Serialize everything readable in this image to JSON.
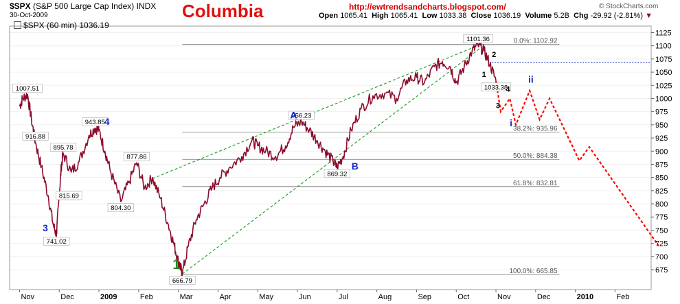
{
  "header": {
    "ticker": "$SPX",
    "index_name": "(S&P 500 Large Cap Index)",
    "exchange": "INDX",
    "date": "30-Oct-2009",
    "title": "Columbia",
    "url": "http://ewtrendsandcharts.blogspot.com/",
    "ohlc": {
      "open_label": "Open",
      "open": "1065.41",
      "high_label": "High",
      "high": "1065.41",
      "low_label": "Low",
      "low": "1033.38",
      "close_label": "Close",
      "close": "1036.19",
      "volume_label": "Volume",
      "volume": "5.2B",
      "chg_label": "Chg",
      "chg": "-29.92 (-2.81%)"
    },
    "legend": "$SPX (60 min) 1036.19",
    "brand": "© StockCharts.com"
  },
  "colors": {
    "title": "#e01010",
    "url": "#d00000",
    "price": "#8b0c2c",
    "wedge": "#2aa02a",
    "forecast": "#ff0000",
    "blue_label": "#1a2acc",
    "green_label": "#1c8c1c",
    "fib_line": "#707070",
    "dotted_level": "#1a2acc"
  },
  "chart_data": {
    "type": "line",
    "x_unit": "months (Nov 2008 = 0)",
    "ylim": [
      650,
      1130
    ],
    "y_ticks": [
      675,
      700,
      725,
      750,
      775,
      800,
      825,
      850,
      875,
      900,
      925,
      950,
      975,
      1000,
      1025,
      1050,
      1075,
      1100,
      1125
    ],
    "x_tick_labels": [
      {
        "label": "Nov",
        "x": 0
      },
      {
        "label": "Dec",
        "x": 1
      },
      {
        "label": "2009",
        "x": 2,
        "bold": true
      },
      {
        "label": "Feb",
        "x": 3
      },
      {
        "label": "Mar",
        "x": 4
      },
      {
        "label": "Apr",
        "x": 5
      },
      {
        "label": "May",
        "x": 6
      },
      {
        "label": "Jun",
        "x": 7
      },
      {
        "label": "Jul",
        "x": 8
      },
      {
        "label": "Aug",
        "x": 9
      },
      {
        "label": "Sep",
        "x": 10
      },
      {
        "label": "Oct",
        "x": 11
      },
      {
        "label": "Nov",
        "x": 12
      },
      {
        "label": "Dec",
        "x": 13
      },
      {
        "label": "2010",
        "x": 14,
        "bold": true
      },
      {
        "label": "Feb",
        "x": 15
      }
    ],
    "series": [
      {
        "kind": "price",
        "points": [
          [
            0,
            985
          ],
          [
            0.08,
            1000
          ],
          [
            0.2,
            1007.51
          ],
          [
            0.3,
            960
          ],
          [
            0.4,
            916.88
          ],
          [
            0.55,
            870
          ],
          [
            0.72,
            815.69
          ],
          [
            0.85,
            760
          ],
          [
            0.93,
            741.02
          ],
          [
            1.0,
            815
          ],
          [
            1.05,
            870
          ],
          [
            1.1,
            895.78
          ],
          [
            1.3,
            860
          ],
          [
            1.5,
            880
          ],
          [
            1.75,
            930
          ],
          [
            1.9,
            943.85
          ],
          [
            2.0,
            940
          ],
          [
            2.15,
            900
          ],
          [
            2.3,
            860
          ],
          [
            2.55,
            804.3
          ],
          [
            2.75,
            840
          ],
          [
            2.95,
            877.86
          ],
          [
            3.15,
            830
          ],
          [
            3.35,
            850
          ],
          [
            3.55,
            810
          ],
          [
            3.75,
            760
          ],
          [
            3.9,
            720
          ],
          [
            4.0,
            690
          ],
          [
            4.05,
            680
          ],
          [
            4.1,
            666.79
          ],
          [
            4.25,
            720
          ],
          [
            4.45,
            770
          ],
          [
            4.65,
            800
          ],
          [
            4.85,
            830
          ],
          [
            5.05,
            850
          ],
          [
            5.3,
            870
          ],
          [
            5.6,
            890
          ],
          [
            5.85,
            920
          ],
          [
            6.0,
            910
          ],
          [
            6.2,
            900
          ],
          [
            6.45,
            890
          ],
          [
            6.7,
            910
          ],
          [
            6.9,
            945
          ],
          [
            7.1,
            956.23
          ],
          [
            7.3,
            940
          ],
          [
            7.5,
            920
          ],
          [
            7.7,
            900
          ],
          [
            7.9,
            880
          ],
          [
            8.0,
            869.32
          ],
          [
            8.15,
            890
          ],
          [
            8.35,
            940
          ],
          [
            8.6,
            980
          ],
          [
            8.9,
            1005
          ],
          [
            9.2,
            1010
          ],
          [
            9.5,
            1000
          ],
          [
            9.75,
            1035
          ],
          [
            10.0,
            1040
          ],
          [
            10.2,
            1030
          ],
          [
            10.45,
            1060
          ],
          [
            10.65,
            1070
          ],
          [
            10.85,
            1060
          ],
          [
            11.0,
            1030
          ],
          [
            11.2,
            1060
          ],
          [
            11.4,
            1090
          ],
          [
            11.55,
            1101.36
          ],
          [
            11.7,
            1090
          ],
          [
            11.85,
            1065
          ],
          [
            12.0,
            1033.38
          ]
        ]
      },
      {
        "kind": "forecast",
        "points": [
          [
            12.0,
            1033.38
          ],
          [
            12.12,
            975
          ],
          [
            12.35,
            1000
          ],
          [
            12.5,
            950
          ],
          [
            12.85,
            1015
          ],
          [
            13.1,
            960
          ],
          [
            13.35,
            1000
          ],
          [
            14.1,
            882
          ],
          [
            14.35,
            908
          ],
          [
            16.1,
            720
          ]
        ]
      }
    ],
    "trendlines": [
      {
        "kind": "wedge",
        "from": [
          3.35,
          848
        ],
        "to": [
          11.6,
          1102
        ]
      },
      {
        "kind": "wedge",
        "from": [
          4.1,
          666.79
        ],
        "to": [
          11.65,
          1098
        ]
      }
    ],
    "fib_levels": [
      {
        "label": "0.0%: 1102.92",
        "value": 1102.92
      },
      {
        "label": "38.2%: 935.96",
        "value": 935.96
      },
      {
        "label": "50.0%: 884.38",
        "value": 884.38
      },
      {
        "label": "61.8%: 832.81",
        "value": 832.81
      },
      {
        "label": "100.0%: 665.85",
        "value": 665.85
      }
    ],
    "fib_x_range": [
      4.1,
      13.6
    ],
    "dotted_level": {
      "value": 1068,
      "x_from": 11.9
    },
    "price_labels": [
      {
        "text": "1007.51",
        "x": 0.2,
        "y": 1007.51,
        "pos": "above"
      },
      {
        "text": "916.88",
        "x": 0.4,
        "y": 916.88,
        "pos": "above"
      },
      {
        "text": "895.78",
        "x": 1.1,
        "y": 895.78,
        "pos": "above"
      },
      {
        "text": "815.69",
        "x": 0.85,
        "y": 815.69,
        "pos": "right"
      },
      {
        "text": "741.02",
        "x": 0.93,
        "y": 741.02,
        "pos": "below"
      },
      {
        "text": "943.85",
        "x": 1.9,
        "y": 943.85,
        "pos": "above"
      },
      {
        "text": "877.86",
        "x": 2.95,
        "y": 877.86,
        "pos": "above"
      },
      {
        "text": "804.30",
        "x": 2.55,
        "y": 804.3,
        "pos": "below"
      },
      {
        "text": "956.23",
        "x": 7.1,
        "y": 956.23,
        "pos": "above"
      },
      {
        "text": "869.32",
        "x": 8.0,
        "y": 869.32,
        "pos": "below"
      },
      {
        "text": "1101.36",
        "x": 11.55,
        "y": 1101.36,
        "pos": "above"
      },
      {
        "text": "1033.38",
        "x": 12.0,
        "y": 1033.38,
        "pos": "below"
      },
      {
        "text": "666.79",
        "x": 4.1,
        "y": 666.79,
        "pos": "below"
      }
    ],
    "wave_labels": [
      {
        "text": "3",
        "x": 0.65,
        "y": 748,
        "color": "blue",
        "size": 14
      },
      {
        "text": "4",
        "x": 2.2,
        "y": 950,
        "color": "blue",
        "size": 14
      },
      {
        "text": "A",
        "x": 6.9,
        "y": 962,
        "color": "blue",
        "size": 14
      },
      {
        "text": "B",
        "x": 8.45,
        "y": 865,
        "color": "blue",
        "size": 14
      },
      {
        "text": "1",
        "x": 3.95,
        "y": 676,
        "color": "green",
        "size": 20
      },
      {
        "text": "2",
        "x": 11.95,
        "y": 1079,
        "color": "black",
        "size": 11
      },
      {
        "text": "1",
        "x": 11.7,
        "y": 1041,
        "color": "black",
        "size": 11
      },
      {
        "text": "4",
        "x": 12.3,
        "y": 1013,
        "color": "black",
        "size": 11
      },
      {
        "text": "3",
        "x": 12.05,
        "y": 982,
        "color": "black",
        "size": 11
      },
      {
        "text": "ii",
        "x": 12.88,
        "y": 1030,
        "color": "blue",
        "size": 14
      },
      {
        "text": "i",
        "x": 12.38,
        "y": 947,
        "color": "blue",
        "size": 14
      }
    ]
  }
}
